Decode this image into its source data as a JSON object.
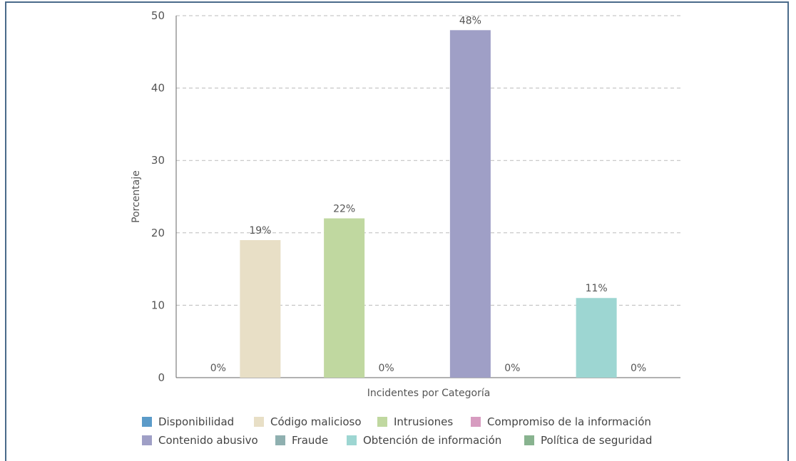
{
  "chart_data": {
    "type": "bar",
    "xlabel": "Incidentes por Categoría",
    "ylabel": "Porcentaje",
    "ylim": [
      0,
      50
    ],
    "yticks": [
      0,
      10,
      20,
      30,
      40,
      50
    ],
    "grid": true,
    "legend_position": "bottom",
    "categories": [
      "Disponibilidad",
      "Código malicioso",
      "Intrusiones",
      "Compromiso de la información",
      "Contenido abusivo",
      "Fraude",
      "Obtención de información",
      "Política de seguridad"
    ],
    "values": [
      0,
      19,
      22,
      0,
      48,
      0,
      11,
      0
    ],
    "data_labels": [
      "0%",
      "19%",
      "22%",
      "0%",
      "48%",
      "0%",
      "11%",
      "0%"
    ],
    "colors": [
      "#5b9bc9",
      "#e8dfc6",
      "#c0d8a0",
      "#d79cc0",
      "#9f9fc6",
      "#8fb0b0",
      "#9dd6d2",
      "#88b38f"
    ]
  }
}
